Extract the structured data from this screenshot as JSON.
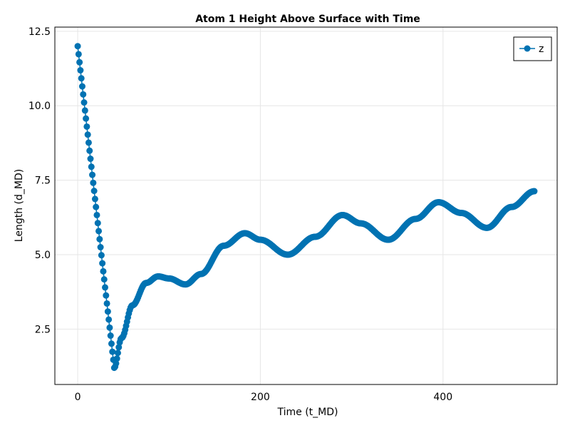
{
  "chart_data": {
    "type": "scatter",
    "title": "Atom 1 Height Above Surface with Time",
    "xlabel": "Time (t_MD)",
    "ylabel": "Length (d_MD)",
    "xlim": [
      -25,
      525
    ],
    "ylim": [
      0.64,
      12.64
    ],
    "xticks": [
      0,
      200,
      400
    ],
    "xtick_labels": [
      "0",
      "200",
      "400"
    ],
    "yticks": [
      2.5,
      5.0,
      7.5,
      10.0,
      12.5
    ],
    "ytick_labels": [
      "2.5",
      "5.0",
      "7.5",
      "10.0",
      "12.5"
    ],
    "grid": true,
    "legend_position": "top-right",
    "series": [
      {
        "name": "z",
        "color": "#0072b2",
        "marker": "circle",
        "line": true,
        "x_start": 0,
        "x_end": 500,
        "x_step": 1,
        "keypoints": [
          [
            0,
            12.0
          ],
          [
            40,
            1.2
          ],
          [
            48,
            2.2
          ],
          [
            60,
            3.3
          ],
          [
            75,
            4.05
          ],
          [
            88,
            4.27
          ],
          [
            100,
            4.2
          ],
          [
            118,
            4.0
          ],
          [
            135,
            4.35
          ],
          [
            160,
            5.3
          ],
          [
            183,
            5.72
          ],
          [
            200,
            5.5
          ],
          [
            230,
            5.0
          ],
          [
            260,
            5.6
          ],
          [
            290,
            6.33
          ],
          [
            310,
            6.05
          ],
          [
            340,
            5.5
          ],
          [
            370,
            6.2
          ],
          [
            395,
            6.76
          ],
          [
            420,
            6.4
          ],
          [
            448,
            5.9
          ],
          [
            475,
            6.6
          ],
          [
            500,
            7.13
          ]
        ]
      }
    ]
  }
}
